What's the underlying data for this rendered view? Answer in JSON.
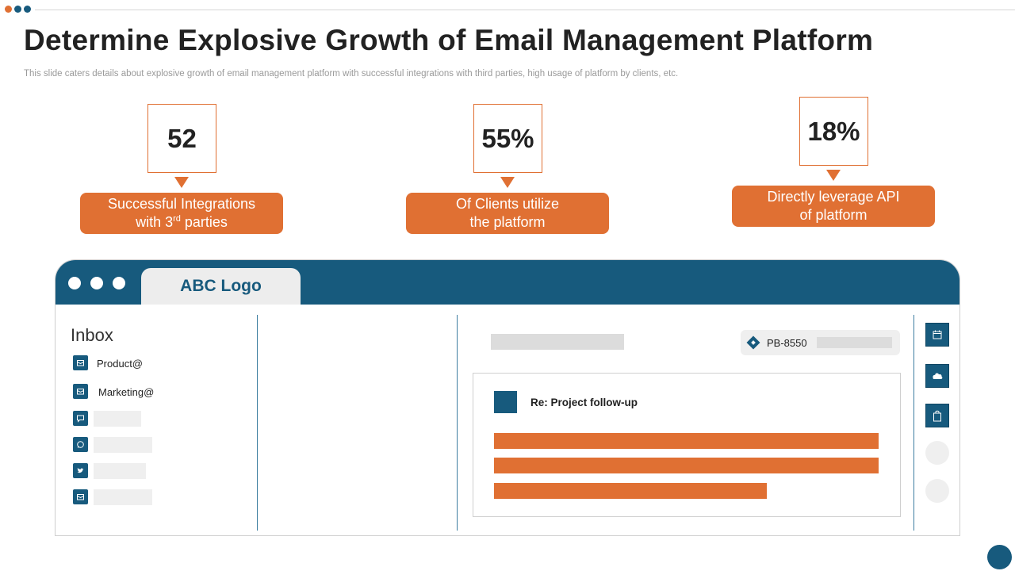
{
  "slide": {
    "title": "Determine Explosive Growth of Email Management Platform",
    "subtitle": "This slide caters details about explosive growth of email management platform with successful integrations with third parties, high usage of platform by clients, etc."
  },
  "colors": {
    "accent_orange": "#e07033",
    "brand_blue": "#175a7d",
    "dot_colors": [
      "#e07033",
      "#175a7d",
      "#175a7d"
    ]
  },
  "stats": [
    {
      "value": "52",
      "label_line1": "Successful Integrations",
      "label_line2_prefix": "with 3",
      "label_line2_sup": "rd",
      "label_line2_suffix": " parties"
    },
    {
      "value": "55%",
      "label_line1": "Of Clients utilize",
      "label_line2": "the platform"
    },
    {
      "value": "18%",
      "label_line1": "Directly leverage API",
      "label_line2": "of platform"
    }
  ],
  "mockup": {
    "logo_label": "ABC Logo",
    "inbox_title": "Inbox",
    "inbox_items": [
      {
        "label": "Product@",
        "icon": "mail-box-icon"
      },
      {
        "label": "Marketing@",
        "icon": "mail-box-icon"
      },
      {
        "label": "",
        "icon": "chat-bubble-icon"
      },
      {
        "label": "",
        "icon": "whatsapp-icon"
      },
      {
        "label": "",
        "icon": "twitter-icon"
      },
      {
        "label": "",
        "icon": "mail-box-icon"
      }
    ],
    "tag_label": "PB-8550",
    "mail_subject": "Re: Project follow-up",
    "side_icons": [
      "calendar-icon",
      "cloud-icon",
      "shopping-bag-icon"
    ]
  }
}
